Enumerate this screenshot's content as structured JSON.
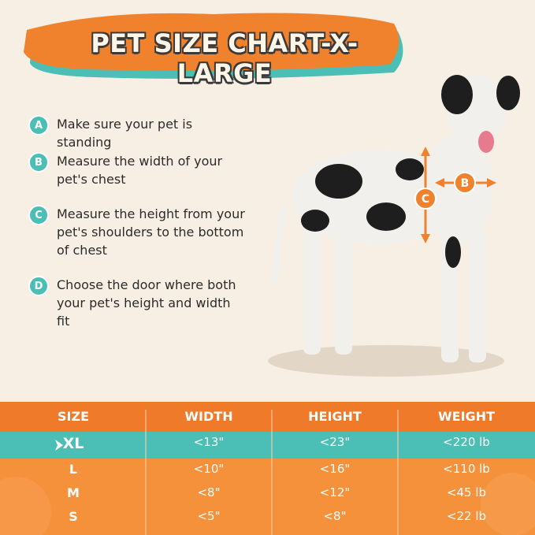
{
  "header": {
    "title": "PET SIZE CHART-X-LARGE"
  },
  "steps": [
    {
      "letter": "A",
      "text": "Make sure your pet is standing"
    },
    {
      "letter": "B",
      "text": "Measure the width of your pet's chest"
    },
    {
      "letter": "C",
      "text": "Measure the height from your pet's shoulders to the bottom of chest"
    },
    {
      "letter": "D",
      "text": "Choose the door where both your pet's height and width fit"
    }
  ],
  "dog_labels": {
    "height": "C",
    "width": "B"
  },
  "table": {
    "columns": [
      "SIZE",
      "WIDTH",
      "HEIGHT",
      "WEIGHT"
    ],
    "rows": [
      [
        "XL",
        "<13\"",
        "<23\"",
        "<220 lb"
      ],
      [
        "L",
        "<10\"",
        "<16\"",
        "<110 lb"
      ],
      [
        "M",
        "<8\"",
        "<12\"",
        "<45 lb"
      ],
      [
        "S",
        "<5\"",
        "<8\"",
        "<22 lb"
      ]
    ]
  }
}
